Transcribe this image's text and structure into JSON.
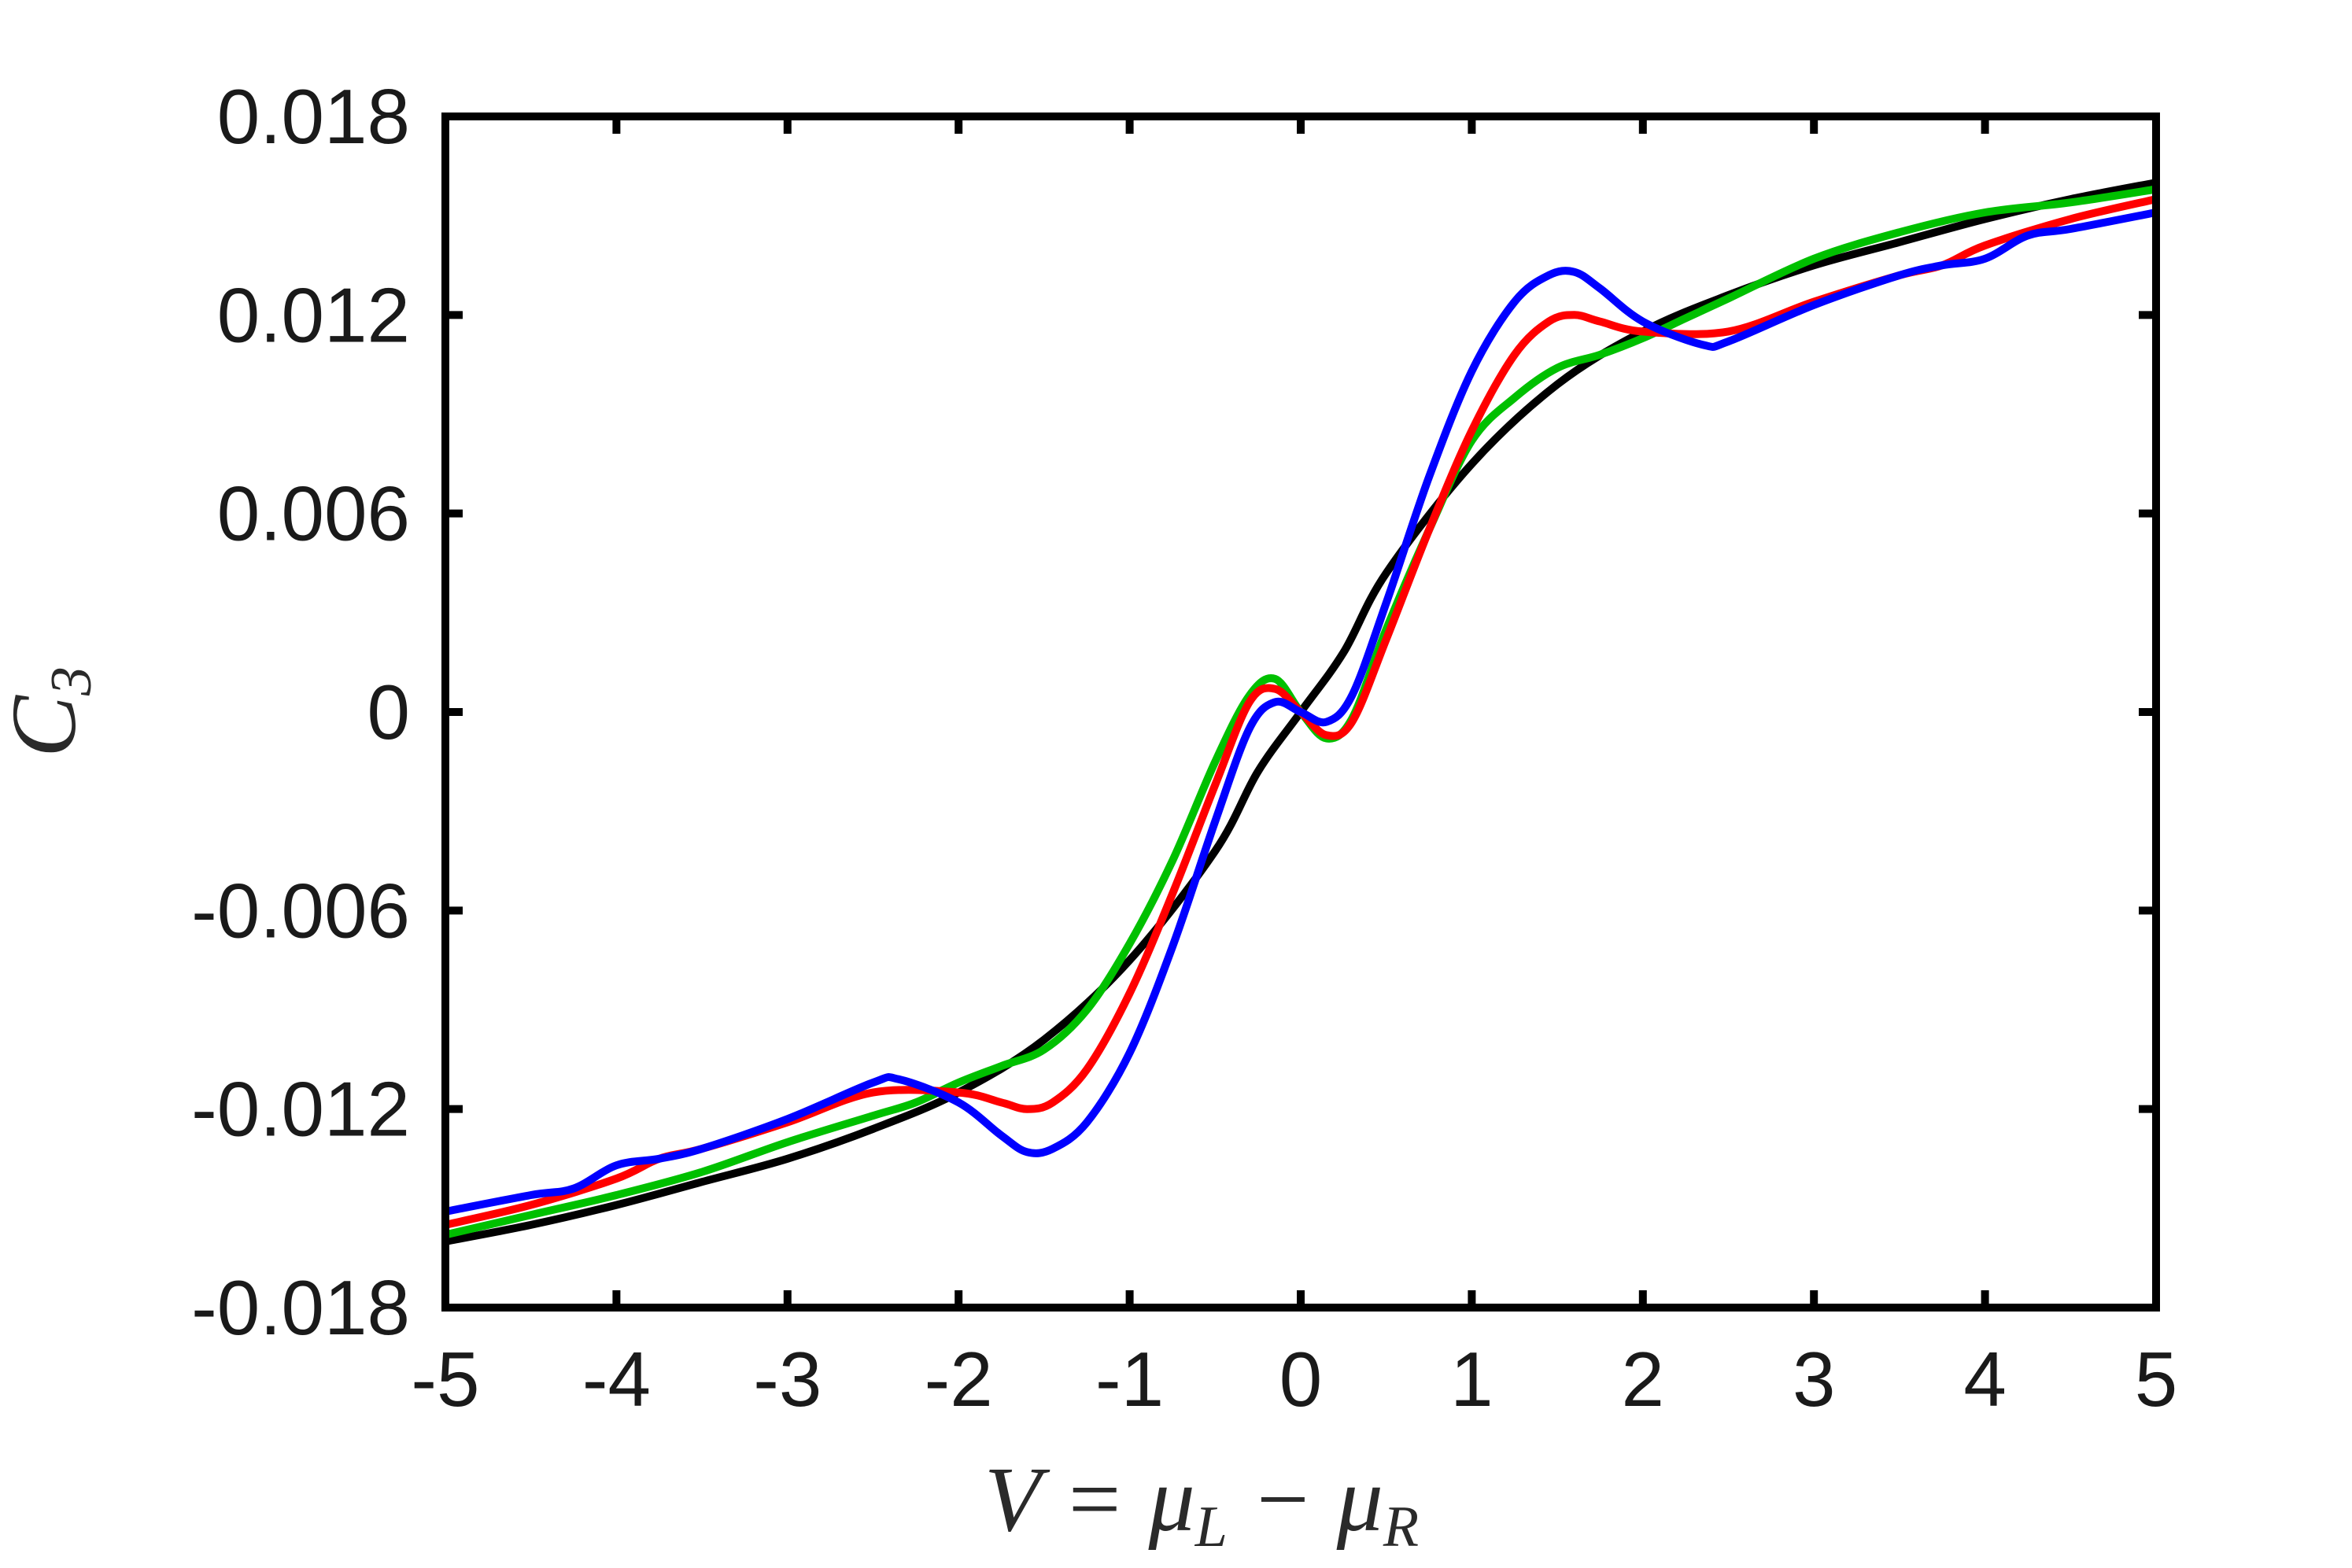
{
  "chart_data": {
    "type": "line",
    "title": "",
    "xlabel": {
      "main": "V = μ",
      "sub1": "L",
      "mid": " − μ",
      "sub2": "R"
    },
    "ylabel": {
      "main": "C",
      "sub": "3"
    },
    "xlim": [
      -5,
      5
    ],
    "ylim": [
      -0.018,
      0.018
    ],
    "xticks": [
      -5,
      -4,
      -3,
      -2,
      -1,
      0,
      1,
      2,
      3,
      4,
      5
    ],
    "xtick_labels": [
      "-5",
      "-4",
      "-3",
      "-2",
      "-1",
      "0",
      "1",
      "2",
      "3",
      "4",
      "5"
    ],
    "yticks": [
      -0.018,
      -0.012,
      -0.006,
      0,
      0.006,
      0.012,
      0.018
    ],
    "ytick_labels": [
      "-0.018",
      "-0.012",
      "-0.006",
      "0",
      "0.006",
      "0.012",
      "0.018"
    ],
    "grid": false,
    "legend": "none",
    "series": [
      {
        "color": "#000000",
        "x": [
          -5,
          -4.5,
          -4,
          -3.5,
          -3,
          -2.5,
          -2,
          -1.5,
          -1,
          -0.5,
          -0.25,
          0,
          0.25,
          0.5,
          1,
          1.5,
          2,
          2.5,
          3,
          3.5,
          4,
          4.5,
          5
        ],
        "y": [
          -0.016,
          -0.0155,
          -0.0149,
          -0.0142,
          -0.0135,
          -0.0126,
          -0.0115,
          -0.0099,
          -0.0075,
          -0.0042,
          -0.0018,
          0,
          0.0018,
          0.0042,
          0.0075,
          0.0099,
          0.0115,
          0.0126,
          0.0135,
          0.0142,
          0.0149,
          0.0155,
          0.016
        ]
      },
      {
        "color": "#00c000",
        "x": [
          -5,
          -4.5,
          -4,
          -3.5,
          -3,
          -2.5,
          -2.25,
          -2,
          -1.75,
          -1.5,
          -1.25,
          -1,
          -0.75,
          -0.5,
          -0.3,
          -0.15,
          0,
          0.15,
          0.3,
          0.5,
          0.75,
          1,
          1.25,
          1.5,
          1.75,
          2,
          2.25,
          2.5,
          3,
          3.5,
          4,
          4.5,
          5
        ],
        "y": [
          -0.0158,
          -0.0152,
          -0.0146,
          -0.0139,
          -0.013,
          -0.0122,
          -0.0118,
          -0.0112,
          -0.0107,
          -0.0102,
          -0.009,
          -0.007,
          -0.0045,
          -0.0015,
          0.0005,
          0.001,
          0.0,
          -0.0008,
          -0.0002,
          0.0025,
          0.0055,
          0.0082,
          0.0095,
          0.0104,
          0.0108,
          0.0113,
          0.0119,
          0.0125,
          0.0137,
          0.0145,
          0.0151,
          0.0154,
          0.0158
        ]
      },
      {
        "color": "#ff0000",
        "x": [
          -5,
          -4.5,
          -4,
          -3.75,
          -3.5,
          -3,
          -2.5,
          -2,
          -1.75,
          -1.6,
          -1.45,
          -1.25,
          -1,
          -0.75,
          -0.5,
          -0.3,
          -0.15,
          0,
          0.15,
          0.3,
          0.5,
          0.75,
          1,
          1.25,
          1.45,
          1.6,
          1.75,
          2,
          2.5,
          3,
          3.5,
          3.75,
          4,
          4.5,
          5
        ],
        "y": [
          -0.0155,
          -0.0149,
          -0.0141,
          -0.0135,
          -0.0132,
          -0.0124,
          -0.0115,
          -0.0115,
          -0.0118,
          -0.012,
          -0.0118,
          -0.0108,
          -0.0085,
          -0.0055,
          -0.0022,
          0.0003,
          0.0007,
          0.0,
          -0.0007,
          -0.0003,
          0.0022,
          0.0055,
          0.0085,
          0.0108,
          0.0118,
          0.012,
          0.0118,
          0.0115,
          0.0115,
          0.0124,
          0.0132,
          0.0135,
          0.0141,
          0.0149,
          0.0155
        ]
      },
      {
        "color": "#0000ff",
        "x": [
          -5,
          -4.5,
          -4.25,
          -4,
          -3.75,
          -3.5,
          -3,
          -2.5,
          -2.35,
          -2,
          -1.75,
          -1.6,
          -1.45,
          -1.25,
          -1,
          -0.75,
          -0.5,
          -0.3,
          -0.15,
          0,
          0.15,
          0.3,
          0.5,
          0.75,
          1,
          1.25,
          1.45,
          1.6,
          1.75,
          2,
          2.35,
          2.5,
          3,
          3.5,
          3.75,
          4,
          4.25,
          4.5,
          5
        ],
        "y": [
          -0.0151,
          -0.0146,
          -0.0144,
          -0.0137,
          -0.0135,
          -0.0132,
          -0.0123,
          -0.0112,
          -0.0111,
          -0.0118,
          -0.0128,
          -0.0133,
          -0.0132,
          -0.0124,
          -0.0103,
          -0.0071,
          -0.0033,
          -0.0005,
          0.0003,
          0.0,
          -0.0003,
          0.0005,
          0.0033,
          0.0071,
          0.0103,
          0.0124,
          0.0132,
          0.0133,
          0.0128,
          0.0118,
          0.0111,
          0.0112,
          0.0123,
          0.0132,
          0.0135,
          0.0137,
          0.0144,
          0.0146,
          0.0151
        ]
      }
    ]
  }
}
